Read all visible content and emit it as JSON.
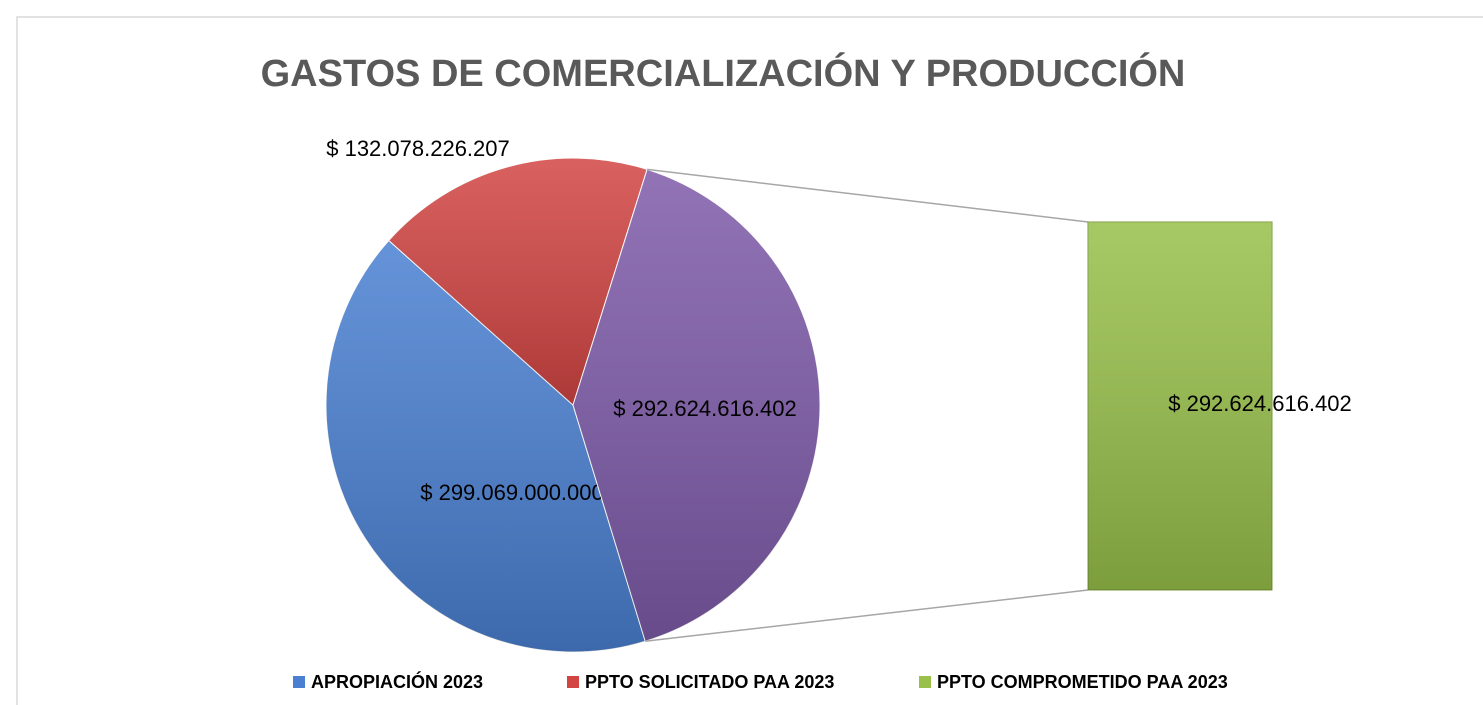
{
  "chart_data": {
    "type": "bar-of-pie",
    "title": "GASTOS DE COMERCIALIZACIÓN Y PRODUCCIÓN",
    "categories": [
      "APROPIACIÓN 2023",
      "PPTO SOLICITADO PAA 2023",
      "PPTO COMPROMETIDO PAA 2023"
    ],
    "values": [
      299069000000,
      132078226207,
      292624616402
    ],
    "value_labels": [
      "$ 299.069.000.000",
      "$ 132.078.226.207",
      "$ 292.624.616.402"
    ],
    "colors": [
      "#4a80d2",
      "#d24543",
      "#98c04a"
    ],
    "other_color": "#7e5ba9",
    "legend": "bottom"
  }
}
